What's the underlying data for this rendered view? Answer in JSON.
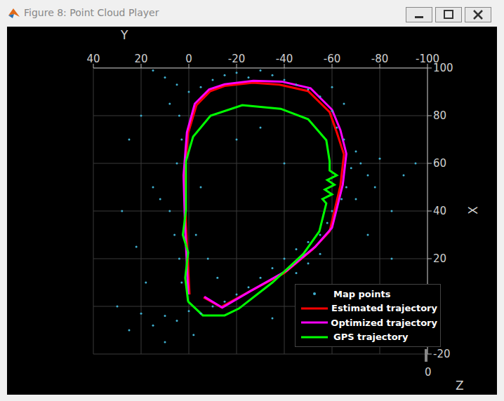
{
  "window_title": "Figure 8: Point Cloud Player",
  "chart_data": {
    "type": "line",
    "x_label": "Y",
    "y_label": "X",
    "z_axis": {
      "label": "Z",
      "ticks": [
        0
      ]
    },
    "xlim": [
      40,
      -100
    ],
    "xticks": [
      40,
      20,
      0,
      -20,
      -40,
      -60,
      -80,
      -100
    ],
    "ylim": [
      -20,
      100
    ],
    "yticks": [
      -20,
      0,
      20,
      40,
      60,
      80,
      100
    ],
    "grid": true,
    "legend": "lower right",
    "series": [
      {
        "name": "Map points",
        "type": "scatter",
        "color": "#3fb0d0",
        "marker": "dot",
        "x": [
          -10,
          -15,
          -20,
          -25,
          -30,
          -35,
          -40,
          -45,
          -50,
          -55,
          -5,
          0,
          5,
          10,
          15,
          -60,
          -62,
          -65,
          -70,
          -72,
          -68,
          -75,
          -80,
          -66,
          -64,
          -60,
          -58,
          -55,
          -50,
          -45,
          -40,
          -35,
          -30,
          -25,
          -20,
          -15,
          -10,
          -5,
          0,
          5,
          10,
          15,
          20,
          25,
          30,
          -45,
          -50,
          -55,
          3,
          4,
          6,
          8,
          12,
          15,
          5,
          3,
          4,
          8,
          20,
          25,
          -5,
          -3,
          -8,
          -12,
          -70,
          -78,
          -85,
          -90,
          -95,
          -65,
          -60,
          -30,
          -20,
          -40,
          28,
          22,
          18,
          -85,
          -75,
          -35,
          10,
          -2
        ],
        "y": [
          95,
          97,
          98,
          96,
          99,
          97,
          95,
          93,
          91,
          88,
          92,
          90,
          93,
          96,
          99,
          82,
          75,
          70,
          65,
          60,
          58,
          55,
          62,
          50,
          45,
          40,
          35,
          30,
          27,
          24,
          20,
          16,
          12,
          8,
          5,
          2,
          0,
          -3,
          -2,
          -6,
          -4,
          -8,
          -3,
          -10,
          0,
          14,
          18,
          22,
          10,
          20,
          30,
          40,
          45,
          50,
          60,
          70,
          80,
          85,
          80,
          70,
          50,
          30,
          20,
          12,
          45,
          50,
          40,
          55,
          60,
          85,
          92,
          75,
          70,
          60,
          40,
          25,
          10,
          20,
          30,
          -5,
          -15,
          -12
        ]
      },
      {
        "name": "Estimated trajectory",
        "type": "line",
        "color": "#ff0000",
        "x": [
          -6.2,
          -13.5,
          -25,
          -40,
          -52,
          -59,
          -63.5,
          -65,
          -62,
          -59,
          -50,
          -38,
          -26.8,
          -15,
          -9,
          -3.2,
          0.3,
          1.8,
          1.2,
          0.3,
          -0.3
        ],
        "y": [
          3.8,
          -0.3,
          6,
          14,
          24,
          31.5,
          50.6,
          63.8,
          73,
          81.5,
          90.3,
          93,
          93.8,
          92.5,
          90.3,
          84.4,
          72.6,
          55,
          34.4,
          16.8,
          5
        ]
      },
      {
        "name": "Optimized trajectory",
        "type": "line",
        "color": "#ff00ff",
        "x": [
          -6.5,
          -14,
          -26,
          -41,
          -53,
          -60,
          -64.5,
          -66,
          -63.5,
          -60,
          -51,
          -39,
          -27,
          -15,
          -8.5,
          -2.5,
          0.8,
          2.2,
          1.6,
          0.8,
          0.2
        ],
        "y": [
          4,
          -0.5,
          6.5,
          15,
          25,
          33,
          51,
          64,
          74,
          82.5,
          91.5,
          94.3,
          94.6,
          93.2,
          91,
          85,
          73,
          55,
          34,
          17,
          5
        ]
      },
      {
        "name": "GPS trajectory",
        "type": "line",
        "color": "#00ff00",
        "x": [
          0.3,
          -5.9,
          -15,
          -21,
          -35,
          -48,
          -54.7,
          -57.6,
          -56,
          -60,
          -57,
          -61,
          -58,
          -62,
          -59,
          -59,
          -57.6,
          -50,
          -38.5,
          -22.4,
          -9.1,
          -1.8,
          1.2,
          1.2,
          2.5,
          0.3,
          1.5,
          0.3
        ],
        "y": [
          2,
          -3.8,
          -3.8,
          -0.9,
          10,
          22,
          31.5,
          43.2,
          45,
          47,
          49,
          51,
          53,
          55,
          57,
          60.9,
          69.7,
          78.5,
          82.9,
          84.4,
          80,
          71.2,
          60.9,
          40.3,
          30,
          22.6,
          12,
          2
        ]
      }
    ]
  }
}
